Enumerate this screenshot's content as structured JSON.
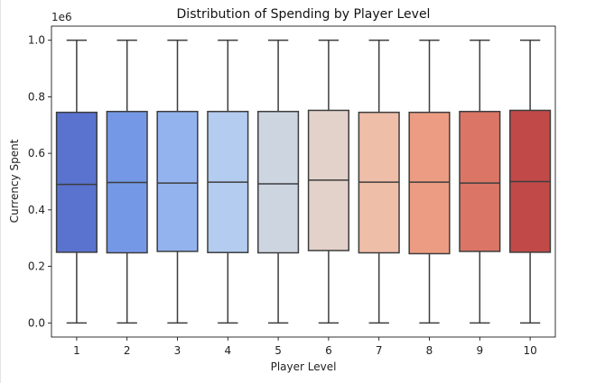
{
  "chart_data": {
    "type": "box",
    "title": "Distribution of Spending by Player Level",
    "xlabel": "Player Level",
    "ylabel": "Currency Spent",
    "y_offset_text": "1e6",
    "ylim": [
      -0.05,
      1.05
    ],
    "yticks": [
      0.0,
      0.2,
      0.4,
      0.6,
      0.8,
      1.0
    ],
    "ytick_labels": [
      "0.0",
      "0.2",
      "0.4",
      "0.6",
      "0.8",
      "1.0"
    ],
    "categories": [
      "1",
      "2",
      "3",
      "4",
      "5",
      "6",
      "7",
      "8",
      "9",
      "10"
    ],
    "colors": [
      "#5a73cf",
      "#7598e6",
      "#93b3ef",
      "#b3ccef",
      "#cdd5e1",
      "#e3d2ca",
      "#eebea8",
      "#ec9c83",
      "#db7565",
      "#c14a48"
    ],
    "boxes": [
      {
        "whisker_low": 0.0,
        "q1": 0.25,
        "median": 0.49,
        "q3": 0.745,
        "whisker_high": 1.0
      },
      {
        "whisker_low": 0.0,
        "q1": 0.248,
        "median": 0.497,
        "q3": 0.748,
        "whisker_high": 1.0
      },
      {
        "whisker_low": 0.0,
        "q1": 0.253,
        "median": 0.495,
        "q3": 0.748,
        "whisker_high": 1.0
      },
      {
        "whisker_low": 0.0,
        "q1": 0.249,
        "median": 0.498,
        "q3": 0.748,
        "whisker_high": 1.0
      },
      {
        "whisker_low": 0.0,
        "q1": 0.248,
        "median": 0.492,
        "q3": 0.748,
        "whisker_high": 1.0
      },
      {
        "whisker_low": 0.0,
        "q1": 0.256,
        "median": 0.505,
        "q3": 0.752,
        "whisker_high": 1.0
      },
      {
        "whisker_low": 0.0,
        "q1": 0.248,
        "median": 0.498,
        "q3": 0.745,
        "whisker_high": 1.0
      },
      {
        "whisker_low": 0.0,
        "q1": 0.245,
        "median": 0.498,
        "q3": 0.745,
        "whisker_high": 1.0
      },
      {
        "whisker_low": 0.0,
        "q1": 0.253,
        "median": 0.495,
        "q3": 0.748,
        "whisker_high": 1.0
      },
      {
        "whisker_low": 0.0,
        "q1": 0.25,
        "median": 0.5,
        "q3": 0.752,
        "whisker_high": 1.0
      }
    ]
  }
}
